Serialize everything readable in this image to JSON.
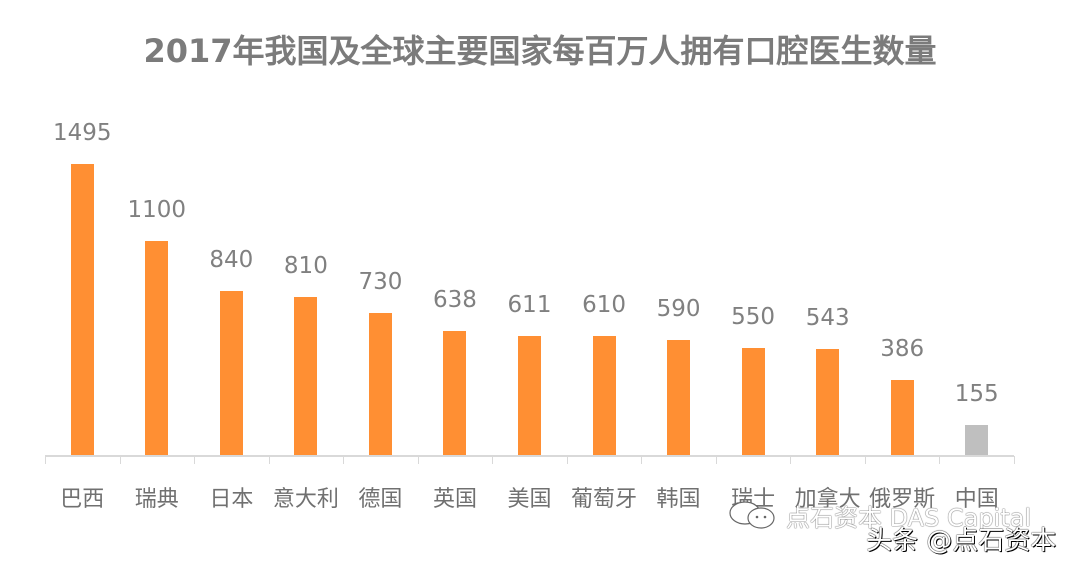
{
  "chart_data": {
    "type": "bar",
    "title": "2017年我国及全球主要国家每百万人拥有口腔医生数量",
    "xlabel": "",
    "ylabel": "",
    "categories": [
      "巴西",
      "瑞典",
      "日本",
      "意大利",
      "德国",
      "英国",
      "美国",
      "葡萄牙",
      "韩国",
      "瑞士",
      "加拿大",
      "俄罗斯",
      "中国"
    ],
    "values": [
      1495,
      1100,
      840,
      810,
      730,
      638,
      611,
      610,
      590,
      550,
      543,
      386,
      155
    ],
    "value_labels": [
      "1495",
      "1100",
      "840",
      "810",
      "730",
      "638",
      "611",
      "610",
      "590",
      "550",
      "543",
      "386",
      "155"
    ],
    "colors": [
      "#ff8f33",
      "#ff8f33",
      "#ff8f33",
      "#ff8f33",
      "#ff8f33",
      "#ff8f33",
      "#ff8f33",
      "#ff8f33",
      "#ff8f33",
      "#ff8f33",
      "#ff8f33",
      "#ff8f33",
      "#bfbfbf"
    ],
    "ylim": [
      0,
      1500
    ],
    "grid": false,
    "legend": null,
    "data_labels": true
  },
  "watermark": {
    "wechat_text": "点石资本 DAS Capital",
    "toutiao_text": "头条 @点石资本"
  },
  "style": {
    "bar_color": "#ff8f33",
    "highlight_color": "#bfbfbf",
    "text_color": "#808080"
  }
}
